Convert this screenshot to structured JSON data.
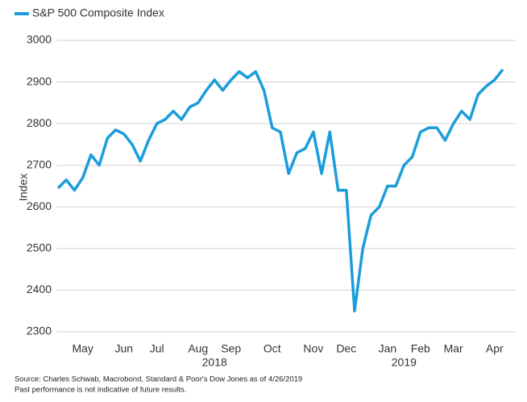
{
  "chart_data": {
    "type": "line",
    "ylabel": "Index",
    "categories": [
      null,
      null,
      null,
      "May",
      null,
      null,
      null,
      null,
      "Jun",
      null,
      null,
      null,
      "Jul",
      null,
      null,
      null,
      null,
      "Aug",
      null,
      null,
      null,
      "Sep",
      null,
      null,
      null,
      null,
      "Oct",
      null,
      null,
      null,
      null,
      "Nov",
      null,
      null,
      null,
      "Dec",
      null,
      null,
      null,
      null,
      "Jan",
      null,
      null,
      null,
      "Feb",
      null,
      null,
      null,
      "Mar",
      null,
      null,
      null,
      null,
      "Apr",
      null
    ],
    "years": [
      "2018",
      "2019"
    ],
    "series": [
      {
        "name": "S&P 500 Composite Index",
        "color": "#1b9ddb",
        "values": [
          2645,
          2665,
          2640,
          2670,
          2725,
          2700,
          2765,
          2785,
          2775,
          2750,
          2710,
          2760,
          2800,
          2810,
          2830,
          2810,
          2840,
          2850,
          2880,
          2905,
          2880,
          2905,
          2925,
          2910,
          2925,
          2880,
          2790,
          2780,
          2680,
          2730,
          2740,
          2780,
          2680,
          2780,
          2640,
          2640,
          2350,
          2500,
          2580,
          2600,
          2650,
          2650,
          2700,
          2720,
          2780,
          2790,
          2790,
          2760,
          2800,
          2830,
          2810,
          2870,
          2890,
          2905,
          2930
        ]
      }
    ],
    "ylim": [
      2300,
      3000
    ],
    "yticks": [
      2300,
      2400,
      2500,
      2600,
      2700,
      2800,
      2900,
      3000
    ],
    "grid": true,
    "legend": "top-left",
    "notes": [
      "Source: Charles Schwab, Macrobond, Standard & Poor's Dow Jones as of 4/26/2019",
      "Past performance is not indicative of future results."
    ]
  }
}
